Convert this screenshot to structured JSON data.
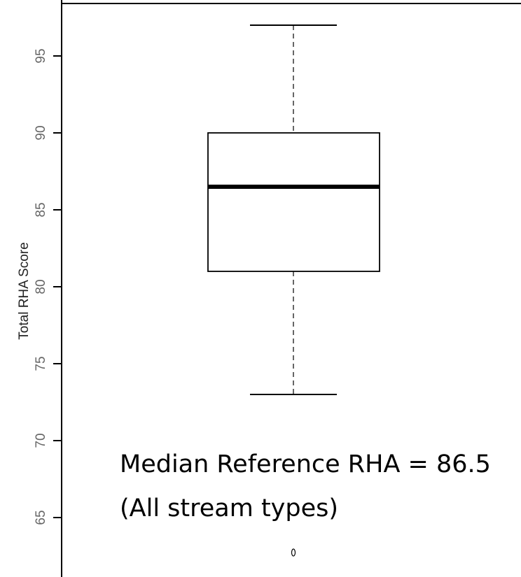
{
  "chart_data": {
    "type": "box",
    "ylabel": "Total RHA Score",
    "yticks": [
      65,
      70,
      75,
      80,
      85,
      90,
      95
    ],
    "box": {
      "whisker_low": 73,
      "q1": 81,
      "median": 86.5,
      "q3": 90,
      "whisker_high": 97,
      "outliers": [
        63
      ]
    },
    "annotations": [
      "Median Reference RHA = 86.5",
      "(All stream types)"
    ]
  }
}
